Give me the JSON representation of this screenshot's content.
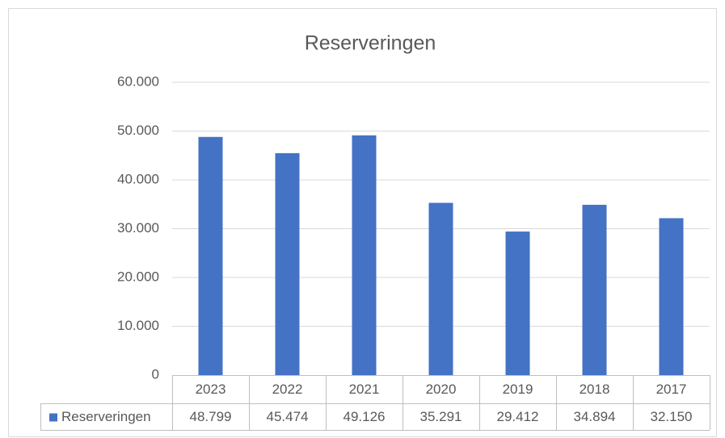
{
  "chart_data": {
    "type": "bar",
    "title": "Reserveringen",
    "categories": [
      "2023",
      "2022",
      "2021",
      "2020",
      "2019",
      "2018",
      "2017"
    ],
    "series": [
      {
        "name": "Reserveringen",
        "color": "#4472c4",
        "values": [
          48799,
          45474,
          49126,
          35291,
          29412,
          34894,
          32150
        ],
        "value_labels": [
          "48.799",
          "45.474",
          "49.126",
          "35.291",
          "29.412",
          "34.894",
          "32.150"
        ]
      }
    ],
    "ylim": [
      0,
      60000
    ],
    "yticks": [
      0,
      {
        "value": 10000,
        "label": "10.000"
      },
      {
        "value": 20000,
        "label": "20.000"
      },
      {
        "value": 30000,
        "label": "30.000"
      },
      {
        "value": 40000,
        "label": "40.000"
      },
      {
        "value": 50000,
        "label": "50.000"
      },
      {
        "value": 60000,
        "label": "60.000"
      }
    ],
    "grid": true
  }
}
